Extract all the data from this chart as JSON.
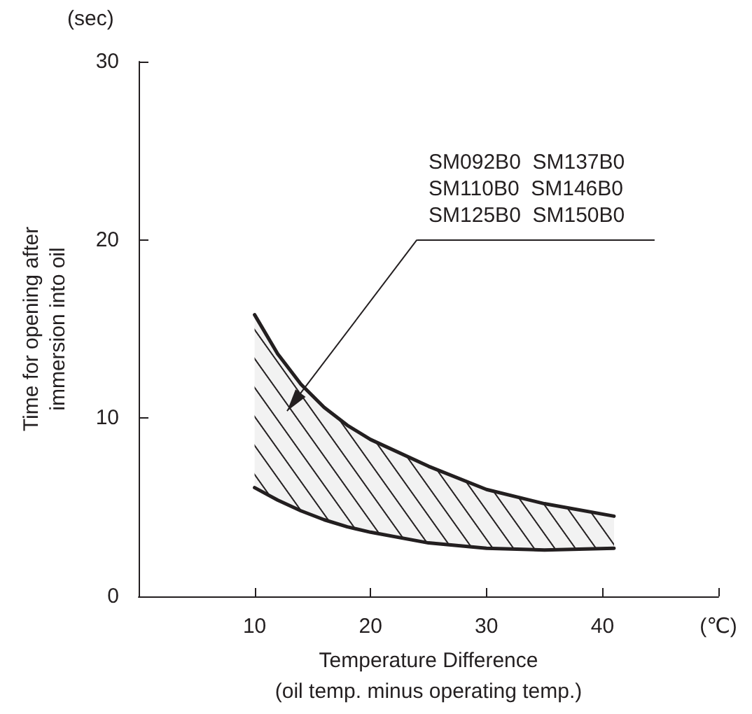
{
  "chart_data": {
    "type": "line",
    "xlabel": "Temperature Difference\n(oil temp. minus operating temp.)",
    "ylabel": "Time for opening after\nimmersion into oil",
    "x": [
      10,
      12,
      14,
      16,
      18,
      20,
      25,
      30,
      35,
      41
    ],
    "series": [
      {
        "color": "#231f20",
        "values": [
          6.1,
          5.4,
          4.8,
          4.3,
          3.9,
          3.6,
          3.0,
          2.7,
          2.6,
          2.7
        ]
      },
      {
        "color": "#231f20",
        "values": [
          15.8,
          13.6,
          11.9,
          10.6,
          9.6,
          8.8,
          7.3,
          6.0,
          5.2,
          4.5
        ],
        "lower": [
          6.1,
          5.4,
          4.8,
          4.3,
          3.9,
          3.6,
          3.0,
          2.7,
          2.6,
          2.7
        ],
        "upper": [
          15.8,
          13.6,
          11.9,
          10.6,
          9.6,
          8.8,
          7.3,
          6.0,
          5.2,
          4.5
        ]
      }
    ],
    "annotations": [
      "SM092B0  SM137B0\nSM110B0  SM146B0\nSM125B0  SM150B0",
      "(sec)"
    ],
    "xlim": [
      0,
      50
    ],
    "xticks": [
      10,
      20,
      30,
      40,
      {
        "value": 50,
        "label": "(℃)"
      }
    ],
    "ylim": [
      0,
      30
    ],
    "yticks": [
      0,
      10,
      20,
      30
    ],
    "grid": false,
    "marker": "none",
    "line_style": "solid"
  }
}
